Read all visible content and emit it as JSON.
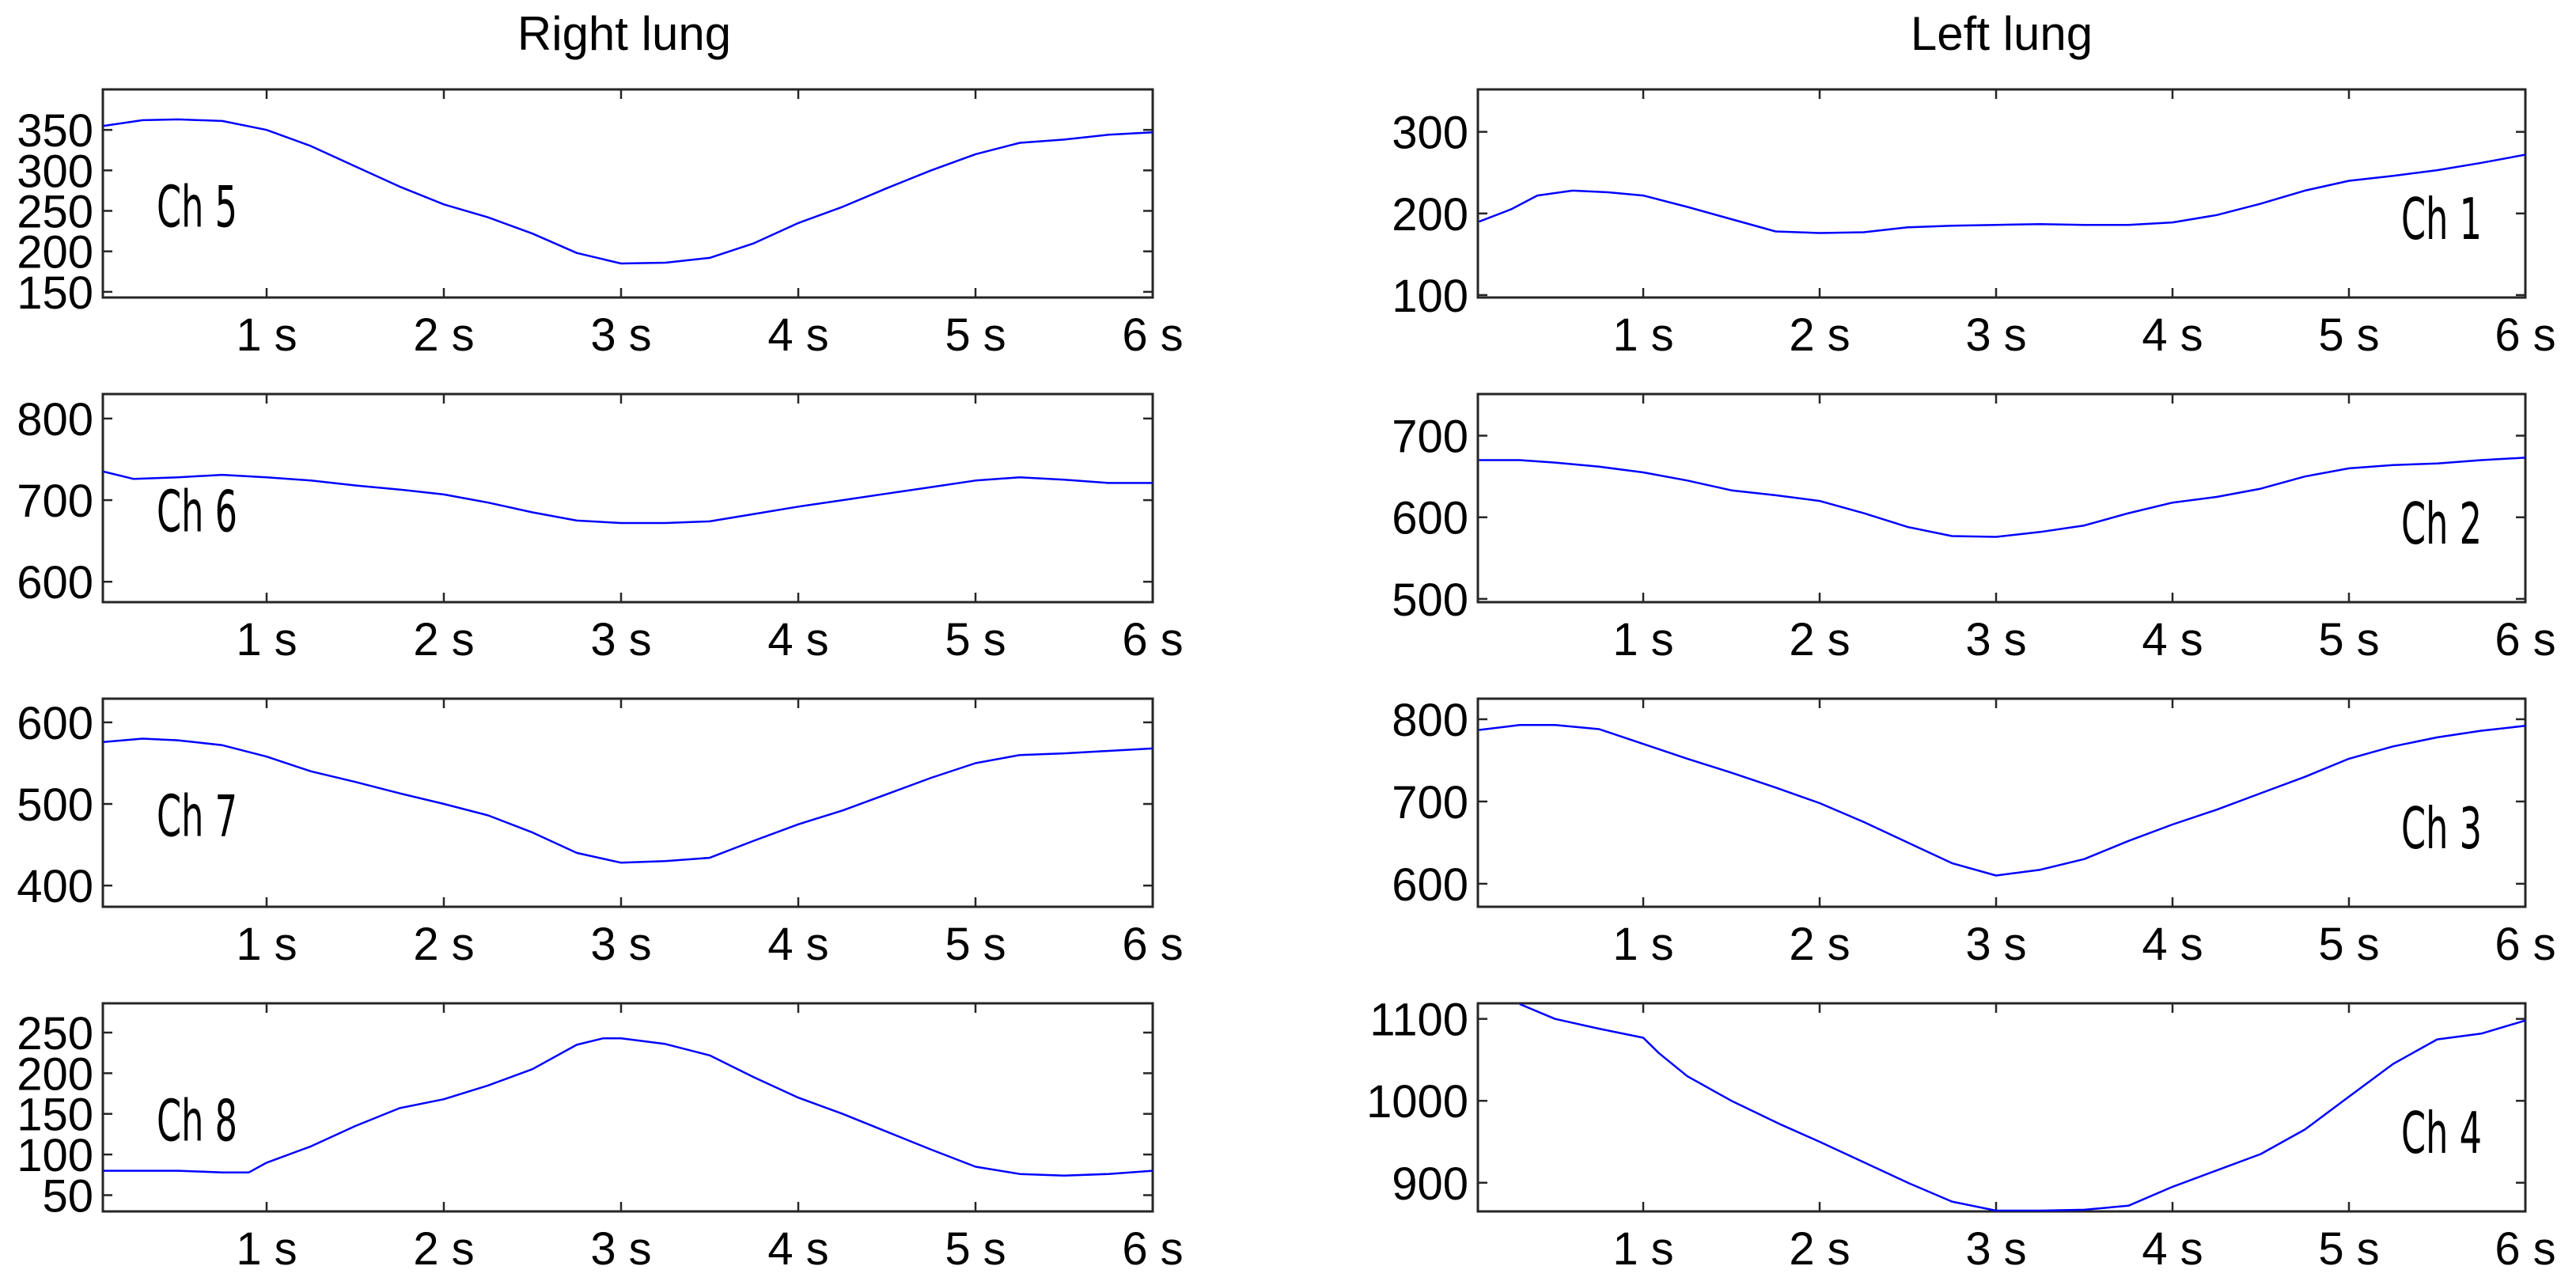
{
  "titles": {
    "right_lung": "Right lung",
    "left_lung": "Left lung"
  },
  "colors": {
    "line": "#0000ff",
    "axis": "#262626",
    "background": "#ffffff"
  },
  "chart_data": [
    {
      "type": "line",
      "title": "Right lung",
      "panel": "Ch 5",
      "column": "left",
      "row": 0,
      "xlabel": "",
      "ylabel": "",
      "xlim": [
        0.076,
        6
      ],
      "ylim": [
        143,
        400
      ],
      "xticks": [
        1,
        2,
        3,
        4,
        5,
        6
      ],
      "xtick_labels": [
        "1 s",
        "2 s",
        "3 s",
        "4 s",
        "5 s",
        "6 s"
      ],
      "yticks": [
        150,
        200,
        250,
        300,
        350
      ],
      "ytick_labels": [
        "150",
        "200",
        "250",
        "300",
        "350"
      ],
      "label_pos": "left",
      "grid": false,
      "x": [
        0.08,
        0.3,
        0.5,
        0.75,
        1.0,
        1.25,
        1.5,
        1.75,
        2.0,
        2.25,
        2.5,
        2.75,
        3.0,
        3.25,
        3.5,
        3.75,
        4.0,
        4.25,
        4.5,
        4.75,
        5.0,
        5.25,
        5.5,
        5.75,
        6.0
      ],
      "values": [
        355,
        362,
        363,
        361,
        350,
        330,
        305,
        280,
        258,
        242,
        222,
        198,
        185,
        186,
        192,
        210,
        235,
        255,
        278,
        300,
        320,
        334,
        338,
        344,
        347
      ]
    },
    {
      "type": "line",
      "title": "Right lung",
      "panel": "Ch 6",
      "column": "left",
      "row": 1,
      "xlabel": "",
      "ylabel": "",
      "xlim": [
        0.076,
        6
      ],
      "ylim": [
        575,
        830
      ],
      "xticks": [
        1,
        2,
        3,
        4,
        5,
        6
      ],
      "xtick_labels": [
        "1 s",
        "2 s",
        "3 s",
        "4 s",
        "5 s",
        "6 s"
      ],
      "yticks": [
        600,
        700,
        800
      ],
      "ytick_labels": [
        "600",
        "700",
        "800"
      ],
      "label_pos": "left",
      "grid": false,
      "x": [
        0.08,
        0.25,
        0.5,
        0.75,
        1.0,
        1.25,
        1.5,
        1.75,
        2.0,
        2.25,
        2.5,
        2.75,
        3.0,
        3.25,
        3.5,
        3.75,
        4.0,
        4.25,
        4.5,
        4.75,
        5.0,
        5.25,
        5.5,
        5.75,
        6.0
      ],
      "values": [
        735,
        726,
        728,
        731,
        728,
        724,
        718,
        713,
        707,
        697,
        685,
        675,
        672,
        672,
        674,
        683,
        692,
        700,
        708,
        716,
        724,
        728,
        725,
        721,
        721
      ]
    },
    {
      "type": "line",
      "title": "Right lung",
      "panel": "Ch 7",
      "column": "left",
      "row": 2,
      "xlabel": "",
      "ylabel": "",
      "xlim": [
        0.076,
        6
      ],
      "ylim": [
        374,
        629
      ],
      "xticks": [
        1,
        2,
        3,
        4,
        5,
        6
      ],
      "xtick_labels": [
        "1 s",
        "2 s",
        "3 s",
        "4 s",
        "5 s",
        "6 s"
      ],
      "yticks": [
        400,
        500,
        600
      ],
      "ytick_labels": [
        "400",
        "500",
        "600"
      ],
      "label_pos": "left",
      "grid": false,
      "x": [
        0.08,
        0.3,
        0.5,
        0.75,
        1.0,
        1.25,
        1.5,
        1.75,
        2.0,
        2.25,
        2.5,
        2.75,
        3.0,
        3.25,
        3.5,
        3.75,
        4.0,
        4.25,
        4.5,
        4.75,
        5.0,
        5.25,
        5.5,
        5.75,
        6.0
      ],
      "values": [
        576,
        580,
        578,
        572,
        558,
        540,
        527,
        513,
        500,
        486,
        465,
        440,
        428,
        430,
        434,
        455,
        475,
        492,
        512,
        532,
        550,
        560,
        562,
        565,
        568
      ]
    },
    {
      "type": "line",
      "title": "Right lung",
      "panel": "Ch 8",
      "column": "left",
      "row": 3,
      "xlabel": "",
      "ylabel": "",
      "xlim": [
        0.076,
        6
      ],
      "ylim": [
        30,
        286
      ],
      "xticks": [
        1,
        2,
        3,
        4,
        5,
        6
      ],
      "xtick_labels": [
        "1 s",
        "2 s",
        "3 s",
        "4 s",
        "5 s",
        "6 s"
      ],
      "yticks": [
        50,
        100,
        150,
        200,
        250
      ],
      "ytick_labels": [
        "50",
        "100",
        "150",
        "200",
        "250"
      ],
      "label_pos": "left",
      "grid": false,
      "x": [
        0.08,
        0.5,
        0.75,
        0.9,
        1.0,
        1.25,
        1.5,
        1.75,
        2.0,
        2.25,
        2.5,
        2.75,
        2.9,
        3.0,
        3.25,
        3.5,
        3.75,
        4.0,
        4.25,
        4.5,
        4.75,
        5.0,
        5.25,
        5.5,
        5.75,
        6.0
      ],
      "values": [
        80,
        80,
        78,
        78,
        90,
        110,
        135,
        157,
        168,
        185,
        205,
        235,
        243,
        243,
        236,
        222,
        195,
        170,
        150,
        128,
        106,
        85,
        76,
        74,
        76,
        80
      ]
    },
    {
      "type": "line",
      "title": "Left lung",
      "panel": "Ch 1",
      "column": "right",
      "row": 0,
      "xlabel": "",
      "ylabel": "",
      "xlim": [
        0.063,
        6
      ],
      "ylim": [
        97,
        352
      ],
      "xticks": [
        1,
        2,
        3,
        4,
        5,
        6
      ],
      "xtick_labels": [
        "1 s",
        "2 s",
        "3 s",
        "4 s",
        "5 s",
        "6 s"
      ],
      "yticks": [
        100,
        200,
        300
      ],
      "ytick_labels": [
        "100",
        "200",
        "300"
      ],
      "label_pos": "right",
      "grid": false,
      "x": [
        0.07,
        0.25,
        0.4,
        0.6,
        0.8,
        1.0,
        1.25,
        1.5,
        1.75,
        2.0,
        2.25,
        2.5,
        2.75,
        3.0,
        3.25,
        3.5,
        3.75,
        4.0,
        4.25,
        4.5,
        4.75,
        5.0,
        5.25,
        5.5,
        5.75,
        6.0
      ],
      "values": [
        190,
        205,
        222,
        228,
        226,
        222,
        208,
        193,
        178,
        176,
        177,
        183,
        185,
        186,
        187,
        186,
        186,
        189,
        198,
        212,
        228,
        240,
        246,
        253,
        262,
        272
      ]
    },
    {
      "type": "line",
      "title": "Left lung",
      "panel": "Ch 2",
      "column": "right",
      "row": 1,
      "xlabel": "",
      "ylabel": "",
      "xlim": [
        0.063,
        6
      ],
      "ylim": [
        496,
        751
      ],
      "xticks": [
        1,
        2,
        3,
        4,
        5,
        6
      ],
      "xtick_labels": [
        "1 s",
        "2 s",
        "3 s",
        "4 s",
        "5 s",
        "6 s"
      ],
      "yticks": [
        500,
        600,
        700
      ],
      "ytick_labels": [
        "500",
        "600",
        "700"
      ],
      "label_pos": "right",
      "grid": false,
      "x": [
        0.07,
        0.3,
        0.5,
        0.75,
        1.0,
        1.25,
        1.5,
        1.75,
        2.0,
        2.25,
        2.5,
        2.75,
        3.0,
        3.25,
        3.5,
        3.75,
        4.0,
        4.25,
        4.5,
        4.75,
        5.0,
        5.25,
        5.5,
        5.75,
        6.0
      ],
      "values": [
        670,
        670,
        667,
        662,
        655,
        645,
        633,
        627,
        620,
        605,
        588,
        577,
        576,
        582,
        590,
        605,
        618,
        625,
        635,
        650,
        660,
        664,
        666,
        670,
        673
      ]
    },
    {
      "type": "line",
      "title": "Left lung",
      "panel": "Ch 3",
      "column": "right",
      "row": 2,
      "xlabel": "",
      "ylabel": "",
      "xlim": [
        0.063,
        6
      ],
      "ylim": [
        572,
        825
      ],
      "xticks": [
        1,
        2,
        3,
        4,
        5,
        6
      ],
      "xtick_labels": [
        "1 s",
        "2 s",
        "3 s",
        "4 s",
        "5 s",
        "6 s"
      ],
      "yticks": [
        600,
        700,
        800
      ],
      "ytick_labels": [
        "600",
        "700",
        "800"
      ],
      "label_pos": "right",
      "grid": false,
      "x": [
        0.07,
        0.3,
        0.5,
        0.75,
        1.0,
        1.25,
        1.5,
        1.75,
        2.0,
        2.25,
        2.5,
        2.75,
        3.0,
        3.25,
        3.5,
        3.75,
        4.0,
        4.25,
        4.5,
        4.75,
        5.0,
        5.25,
        5.5,
        5.75,
        6.0
      ],
      "values": [
        787,
        793,
        793,
        788,
        770,
        752,
        735,
        717,
        698,
        675,
        650,
        625,
        610,
        617,
        630,
        652,
        672,
        690,
        710,
        730,
        752,
        767,
        778,
        786,
        792
      ]
    },
    {
      "type": "line",
      "title": "Left lung",
      "panel": "Ch 4",
      "column": "right",
      "row": 3,
      "xlabel": "",
      "ylabel": "",
      "xlim": [
        0.063,
        6
      ],
      "ylim": [
        865,
        1119
      ],
      "xticks": [
        1,
        2,
        3,
        4,
        5,
        6
      ],
      "xtick_labels": [
        "1 s",
        "2 s",
        "3 s",
        "4 s",
        "5 s",
        "6 s"
      ],
      "yticks": [
        900,
        1000,
        1100
      ],
      "ytick_labels": [
        "900",
        "1000",
        "1100"
      ],
      "label_pos": "right",
      "grid": false,
      "x": [
        0.3,
        0.5,
        0.75,
        1.0,
        1.09,
        1.25,
        1.5,
        1.78,
        2.0,
        2.25,
        2.5,
        2.75,
        3.0,
        3.25,
        3.5,
        3.75,
        4.0,
        4.25,
        4.5,
        4.75,
        5.0,
        5.25,
        5.5,
        5.75,
        6.0
      ],
      "values": [
        1118,
        1100,
        1088,
        1077,
        1058,
        1030,
        1000,
        971,
        950,
        925,
        900,
        877,
        866,
        866,
        867,
        872,
        895,
        915,
        935,
        965,
        1005,
        1045,
        1075,
        1082,
        1098
      ]
    }
  ]
}
